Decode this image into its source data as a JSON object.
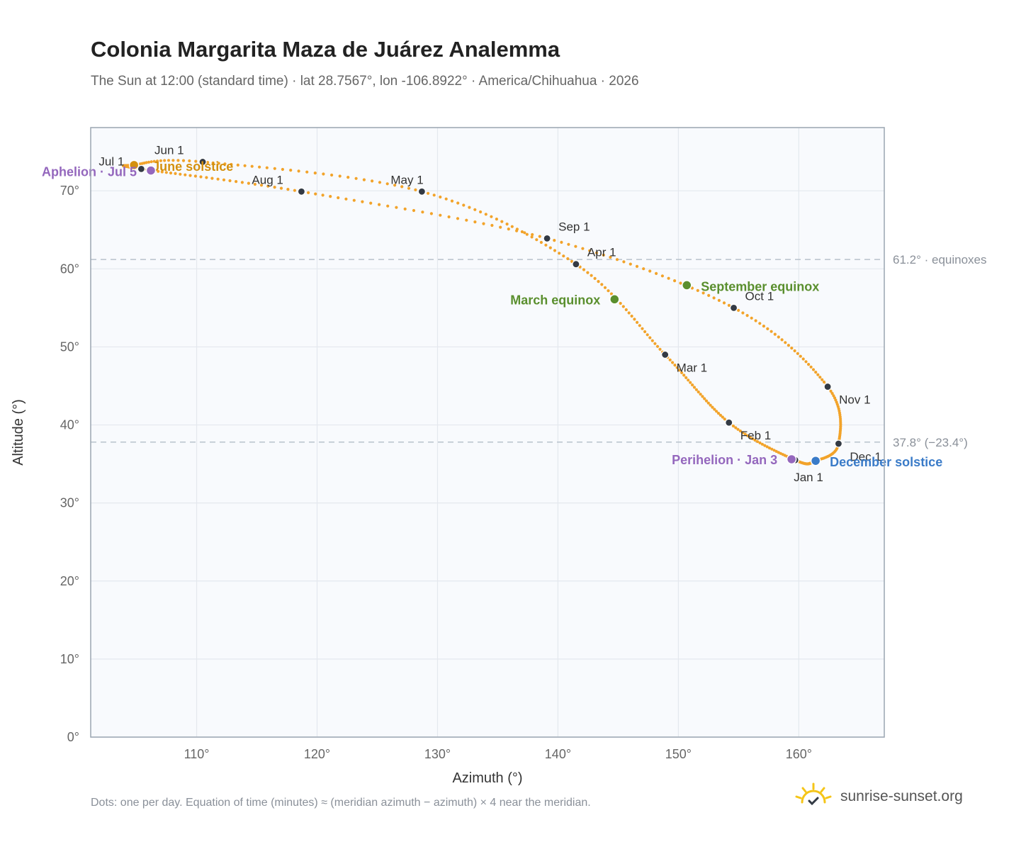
{
  "title": "Colonia Margarita Maza de Juárez Analemma",
  "subtitle": "The Sun at 12:00 (standard time) · lat 28.7567°, lon -106.8922° · America/Chihuahua · 2026",
  "footnote": "Dots: one per day. Equation of time (minutes) ≈ (meridian azimuth − azimuth) × 4 near the meridian.",
  "brand": {
    "name": "sunrise-sunset.org",
    "logo_icon": "sun-logo-icon"
  },
  "colors": {
    "curve": "#f2a32a",
    "month_marker": "#333a44",
    "equinox": "#5a8f2e",
    "solstice_june": "#d4900e",
    "solstice_december": "#3a7bc8",
    "apsis": "#9467bd",
    "ref_line": "#b8c2cc",
    "plot_bg": "#f8fafd",
    "frame": "#9aa5b1"
  },
  "chart_data": {
    "type": "scatter",
    "xlabel": "Azimuth (°)",
    "ylabel": "Altitude (°)",
    "xlim": [
      101.2,
      167.1
    ],
    "ylim": [
      0,
      78.1
    ],
    "x_ticks": [
      110,
      120,
      130,
      140,
      150,
      160
    ],
    "y_ticks": [
      0,
      10,
      20,
      30,
      40,
      50,
      60,
      70
    ],
    "grid": true,
    "month_markers": [
      {
        "label": "Jan 1",
        "az": 159.7,
        "alt": 35.5
      },
      {
        "label": "Feb 1",
        "az": 154.2,
        "alt": 40.3
      },
      {
        "label": "Mar 1",
        "az": 148.9,
        "alt": 49.0
      },
      {
        "label": "Apr 1",
        "az": 141.5,
        "alt": 60.6
      },
      {
        "label": "May 1",
        "az": 128.7,
        "alt": 69.9
      },
      {
        "label": "Jun 1",
        "az": 110.5,
        "alt": 73.7
      },
      {
        "label": "Jul 1",
        "az": 105.4,
        "alt": 72.8
      },
      {
        "label": "Aug 1",
        "az": 118.7,
        "alt": 69.9
      },
      {
        "label": "Sep 1",
        "az": 139.1,
        "alt": 63.9
      },
      {
        "label": "Oct 1",
        "az": 154.6,
        "alt": 55.0
      },
      {
        "label": "Nov 1",
        "az": 162.4,
        "alt": 44.9
      },
      {
        "label": "Dec 1",
        "az": 163.3,
        "alt": 37.6
      }
    ],
    "events": [
      {
        "label": "March equinox",
        "az": 144.7,
        "alt": 56.1,
        "kind": "equinox"
      },
      {
        "label": "September equinox",
        "az": 150.7,
        "alt": 57.9,
        "kind": "equinox"
      },
      {
        "label": "June solstice",
        "az": 104.8,
        "alt": 73.3,
        "kind": "solstice_june"
      },
      {
        "label": "December solstice",
        "az": 161.4,
        "alt": 35.4,
        "kind": "solstice_december"
      },
      {
        "label": "Aphelion · Jul 5",
        "az": 106.2,
        "alt": 72.6,
        "kind": "apsis"
      },
      {
        "label": "Perihelion · Jan 3",
        "az": 159.4,
        "alt": 35.6,
        "kind": "apsis"
      }
    ],
    "reference_lines": [
      {
        "y": 61.2,
        "label": "61.2° · equinoxes"
      },
      {
        "y": 37.8,
        "label": "37.8° (−23.4°)"
      }
    ]
  }
}
